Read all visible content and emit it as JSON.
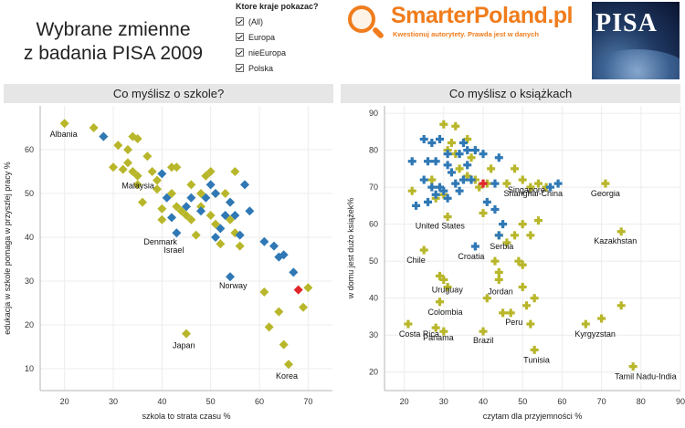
{
  "header": {
    "title_line1": "Wybrane zmienne",
    "title_line2": "z badania PISA 2009"
  },
  "filter": {
    "heading": "Ktore kraje pokazac?",
    "options": [
      "(All)",
      "Europa",
      "nieEuropa",
      "Polska"
    ]
  },
  "logo": {
    "brand": "SmarterPoland.pl",
    "tagline": "Kwestionuj autorytety. Prawda jest w danych",
    "pisa": "PISA"
  },
  "colors": {
    "europa": "#b8b62a",
    "nieeuropa": "#2f78b5",
    "polska": "#e0262a",
    "panel_header": "#e6e6e6"
  },
  "chart_data": [
    {
      "type": "scatter",
      "title": "Co myślisz o szkole?",
      "xlabel": "szkola to strata czasu %",
      "ylabel": "edukacja w szkole pomaga w przyszlej pracy %",
      "xlim": [
        15,
        75
      ],
      "ylim": [
        5,
        70
      ],
      "xticks": [
        20,
        30,
        40,
        50,
        60,
        70
      ],
      "yticks": [
        10,
        20,
        30,
        40,
        50,
        60
      ],
      "marker": "diamond",
      "series": [
        {
          "name": "Europa",
          "color": "#b8b62a",
          "points": [
            [
              20,
              66
            ],
            [
              26,
              65
            ],
            [
              28,
              63
            ],
            [
              31,
              61
            ],
            [
              30,
              56
            ],
            [
              32,
              55.5
            ],
            [
              33,
              60
            ],
            [
              34,
              63
            ],
            [
              35,
              62.5
            ],
            [
              33,
              57
            ],
            [
              34,
              55
            ],
            [
              35,
              54
            ],
            [
              35,
              52
            ],
            [
              37,
              58.5
            ],
            [
              38,
              55
            ],
            [
              39,
              53
            ],
            [
              40,
              46.5
            ],
            [
              39,
              51
            ],
            [
              40,
              44
            ],
            [
              36,
              48
            ],
            [
              42,
              56
            ],
            [
              43,
              56
            ],
            [
              42,
              50
            ],
            [
              43,
              47
            ],
            [
              44,
              46
            ],
            [
              45,
              45
            ],
            [
              46,
              52
            ],
            [
              46,
              44
            ],
            [
              47,
              40.5
            ],
            [
              48,
              47
            ],
            [
              48,
              50
            ],
            [
              49,
              54
            ],
            [
              50,
              55
            ],
            [
              51,
              50
            ],
            [
              50,
              45
            ],
            [
              51,
              43
            ],
            [
              53,
              50
            ],
            [
              54,
              48
            ],
            [
              55,
              55
            ],
            [
              54,
              44
            ],
            [
              55,
              41
            ],
            [
              52,
              38.5
            ],
            [
              56,
              38
            ],
            [
              61,
              27.5
            ],
            [
              62,
              19.5
            ],
            [
              64,
              23
            ],
            [
              65,
              15.5
            ],
            [
              66,
              11
            ],
            [
              69,
              24
            ],
            [
              70,
              28.5
            ],
            [
              45,
              18
            ]
          ]
        },
        {
          "name": "nieEuropa",
          "color": "#2f78b5",
          "points": [
            [
              28,
              63
            ],
            [
              40,
              54.5
            ],
            [
              41,
              49
            ],
            [
              42,
              44.5
            ],
            [
              43,
              41
            ],
            [
              45,
              47
            ],
            [
              46,
              49
            ],
            [
              48,
              46
            ],
            [
              49,
              49
            ],
            [
              50,
              52
            ],
            [
              51,
              50
            ],
            [
              51,
              40
            ],
            [
              52,
              42
            ],
            [
              53,
              45
            ],
            [
              54,
              48
            ],
            [
              55,
              45
            ],
            [
              56,
              40.5
            ],
            [
              57,
              52
            ],
            [
              58,
              46
            ],
            [
              54,
              31
            ],
            [
              61,
              39
            ],
            [
              63,
              38
            ],
            [
              64,
              35.5
            ],
            [
              65,
              36
            ],
            [
              67,
              32
            ]
          ]
        },
        {
          "name": "Polska",
          "color": "#e0262a",
          "points": [
            [
              68,
              28
            ]
          ]
        }
      ],
      "labels": [
        {
          "text": "Albania",
          "x": 20,
          "y": 66
        },
        {
          "text": "Malaysia",
          "x": 40,
          "y": 54.5
        },
        {
          "text": "Denmark",
          "x": 43,
          "y": 41
        },
        {
          "text": "Israel",
          "x": 46,
          "y": 39
        },
        {
          "text": "Norway",
          "x": 54,
          "y": 31
        },
        {
          "text": "Japan",
          "x": 45,
          "y": 18
        },
        {
          "text": "Korea",
          "x": 66,
          "y": 11
        }
      ]
    },
    {
      "type": "scatter",
      "title": "Co myślisz o książkach",
      "xlabel": "czytam dla przyjemności %",
      "ylabel": "w domu jest dużo książek%",
      "xlim": [
        15,
        90
      ],
      "ylim": [
        15,
        92
      ],
      "xticks": [
        20,
        30,
        40,
        50,
        60,
        70,
        80,
        90
      ],
      "yticks": [
        20,
        30,
        40,
        50,
        60,
        70,
        80,
        90
      ],
      "marker": "plus",
      "series": [
        {
          "name": "Europa",
          "color": "#b8b62a",
          "points": [
            [
              30,
              87
            ],
            [
              33,
              86.5
            ],
            [
              32,
              82
            ],
            [
              36,
              83
            ],
            [
              37,
              78
            ],
            [
              31,
              80
            ],
            [
              33,
              79
            ],
            [
              34,
              75
            ],
            [
              35,
              72
            ],
            [
              36,
              73
            ],
            [
              38,
              72
            ],
            [
              39,
              70
            ],
            [
              41,
              71
            ],
            [
              42,
              75
            ],
            [
              46,
              71
            ],
            [
              48,
              75
            ],
            [
              50,
              72
            ],
            [
              52,
              70
            ],
            [
              54,
              71
            ],
            [
              56,
              70
            ],
            [
              71,
              71
            ],
            [
              27,
              72
            ],
            [
              22,
              69
            ],
            [
              30,
              68
            ],
            [
              28,
              67
            ],
            [
              31,
              62
            ],
            [
              40,
              63
            ],
            [
              44,
              57
            ],
            [
              46,
              55
            ],
            [
              48,
              57
            ],
            [
              50,
              60
            ],
            [
              52,
              57
            ],
            [
              54,
              61
            ],
            [
              43,
              50
            ],
            [
              44,
              47
            ],
            [
              49,
              50
            ],
            [
              50,
              49
            ],
            [
              25,
              53
            ],
            [
              29,
              46
            ],
            [
              30,
              45
            ],
            [
              31,
              43
            ],
            [
              41,
              40
            ],
            [
              44,
              45
            ],
            [
              50,
              43
            ],
            [
              51,
              38
            ],
            [
              53,
              40
            ],
            [
              29,
              39
            ],
            [
              45,
              36
            ],
            [
              47,
              36
            ],
            [
              21,
              33
            ],
            [
              28,
              32
            ],
            [
              30,
              31
            ],
            [
              40,
              31
            ],
            [
              53,
              26
            ],
            [
              52,
              33
            ],
            [
              66,
              33
            ],
            [
              70,
              34.5
            ],
            [
              75,
              38
            ],
            [
              75,
              58
            ],
            [
              78,
              21.5
            ]
          ]
        },
        {
          "name": "nieEuropa",
          "color": "#2f78b5",
          "points": [
            [
              25,
              83
            ],
            [
              27,
              82
            ],
            [
              29,
              83
            ],
            [
              35,
              82
            ],
            [
              31,
              79
            ],
            [
              34,
              79
            ],
            [
              36,
              80
            ],
            [
              38,
              80
            ],
            [
              40,
              79
            ],
            [
              22,
              77
            ],
            [
              26,
              77
            ],
            [
              28,
              77
            ],
            [
              31,
              76
            ],
            [
              32,
              74
            ],
            [
              36,
              76
            ],
            [
              44,
              78
            ],
            [
              25,
              72
            ],
            [
              27,
              70
            ],
            [
              29,
              70
            ],
            [
              30,
              69
            ],
            [
              33,
              71
            ],
            [
              35,
              72
            ],
            [
              37,
              72
            ],
            [
              43,
              71
            ],
            [
              57,
              70
            ],
            [
              59,
              71
            ],
            [
              23,
              65
            ],
            [
              26,
              66
            ],
            [
              28,
              68
            ],
            [
              31,
              67
            ],
            [
              34,
              69
            ],
            [
              41,
              66
            ],
            [
              43,
              64
            ],
            [
              45,
              60
            ],
            [
              44,
              57
            ],
            [
              38,
              54
            ]
          ]
        },
        {
          "name": "Polska",
          "color": "#e0262a",
          "points": [
            [
              40,
              71
            ]
          ]
        }
      ],
      "labels": [
        {
          "text": "Singapore",
          "x": 46,
          "y": 71
        },
        {
          "text": "Georgia",
          "x": 71,
          "y": 71
        },
        {
          "text": "Shanghai-China",
          "x": 57,
          "y": 70
        },
        {
          "text": "United States",
          "x": 30,
          "y": 62
        },
        {
          "text": "Kazakhstan",
          "x": 75,
          "y": 58
        },
        {
          "text": "Serbia",
          "x": 44,
          "y": 57
        },
        {
          "text": "Chile",
          "x": 25,
          "y": 53
        },
        {
          "text": "Croatia",
          "x": 38,
          "y": 54
        },
        {
          "text": "Uruguay",
          "x": 30,
          "y": 45
        },
        {
          "text": "Jordan",
          "x": 44,
          "y": 45
        },
        {
          "text": "Colombia",
          "x": 29,
          "y": 39
        },
        {
          "text": "Peru",
          "x": 47,
          "y": 36
        },
        {
          "text": "Costa Rica",
          "x": 21,
          "y": 33
        },
        {
          "text": "Panama",
          "x": 28,
          "y": 32
        },
        {
          "text": "Brazil",
          "x": 40,
          "y": 31
        },
        {
          "text": "Kyrgyzstan",
          "x": 66,
          "y": 33
        },
        {
          "text": "Tunisia",
          "x": 53,
          "y": 26
        },
        {
          "text": "Tamil Nadu-India",
          "x": 78,
          "y": 21.5
        }
      ]
    }
  ]
}
